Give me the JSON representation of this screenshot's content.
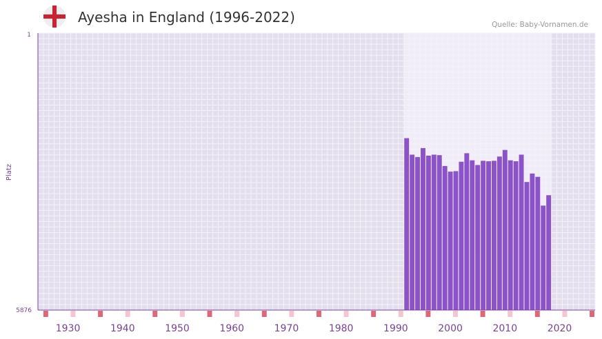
{
  "title": "Ayesha in England (1996-2022)",
  "source": "Quelle: Baby-Vornamen.de",
  "flag": {
    "icon": "england-flag-icon",
    "colors": {
      "base": "#eeeeee",
      "cross": "#cc2233"
    }
  },
  "colors": {
    "bar": "#8c52c8",
    "plot_bg": "#e3dfee",
    "plot_bg_highlight": "#f0ecf8",
    "grid": "#f4f2f8",
    "axis": "#7a3f9e",
    "marker_decade": "#dd6677",
    "marker_half": "#f5c6cf"
  },
  "chart_data": {
    "type": "bar",
    "title": "Ayesha in England (1996-2022)",
    "ylabel": "Platz",
    "xlabel": "",
    "y_axis_inverted": true,
    "ylim": [
      1,
      5876
    ],
    "y_tick_labels": [
      "1",
      "5876"
    ],
    "xlim": [
      1927,
      2028
    ],
    "x_ticks": [
      1930,
      1940,
      1950,
      1960,
      1970,
      1980,
      1990,
      2000,
      2010,
      2020
    ],
    "x_tick_labels": [
      "1930",
      "1940",
      "1950",
      "1960",
      "1970",
      "1980",
      "1990",
      "2000",
      "2010",
      "2020"
    ],
    "highlight_range": [
      1994,
      2021
    ],
    "x": [
      1994,
      1995,
      1996,
      1997,
      1998,
      1999,
      2000,
      2001,
      2002,
      2003,
      2004,
      2005,
      2006,
      2007,
      2008,
      2009,
      2010,
      2011,
      2012,
      2013,
      2014,
      2015,
      2016,
      2017,
      2018,
      2019,
      2020
    ],
    "values": [
      2230,
      2580,
      2630,
      2440,
      2600,
      2580,
      2590,
      2820,
      2940,
      2930,
      2730,
      2550,
      2700,
      2800,
      2710,
      2720,
      2710,
      2620,
      2480,
      2700,
      2720,
      2580,
      3160,
      2980,
      3050,
      3660,
      3440
    ]
  }
}
